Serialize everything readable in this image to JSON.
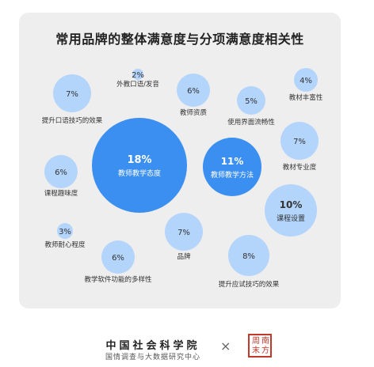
{
  "chart_data": {
    "type": "bubble",
    "title": "常用品牌的整体满意度与分项满意度相关性",
    "colors": {
      "major": "#3b8ff0",
      "minor": "#b3d4fb",
      "label_text": "#333333"
    },
    "items": [
      {
        "name": "外教口语/发音",
        "value": 2
      },
      {
        "name": "提升口语技巧的效果",
        "value": 7
      },
      {
        "name": "教师资质",
        "value": 6
      },
      {
        "name": "使用界面流畅性",
        "value": 5
      },
      {
        "name": "教材丰富性",
        "value": 4
      },
      {
        "name": "教师教学态度",
        "value": 18
      },
      {
        "name": "教师教学方法",
        "value": 11
      },
      {
        "name": "教材专业度",
        "value": 7
      },
      {
        "name": "课程趣味度",
        "value": 6
      },
      {
        "name": "课程设置",
        "value": 10
      },
      {
        "name": "教师耐心程度",
        "value": 3
      },
      {
        "name": "品牌",
        "value": 7
      },
      {
        "name": "教学软件功能的多样性",
        "value": 6
      },
      {
        "name": "提升应试技巧的效果",
        "value": 8
      }
    ]
  },
  "footer": {
    "org": "中国社会科学院",
    "sub": "国情调查与大数据研究中心",
    "times": "×",
    "seal_chars": [
      "周",
      "南",
      "末",
      "方"
    ]
  }
}
